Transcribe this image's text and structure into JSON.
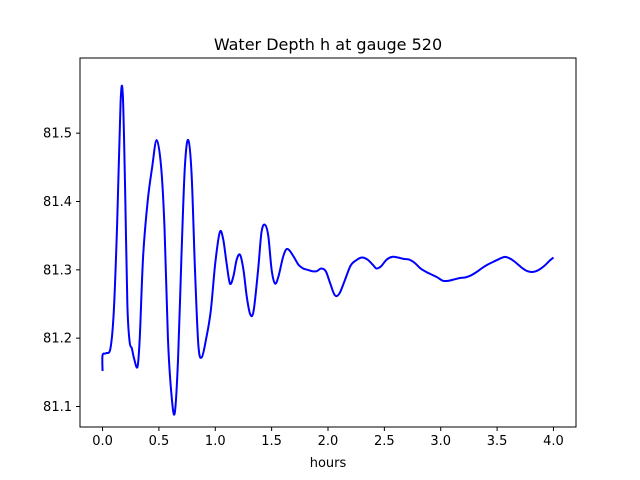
{
  "chart_data": {
    "type": "line",
    "title": "Water Depth h at gauge 520",
    "xlabel": "hours",
    "ylabel": "",
    "xlim": [
      -0.2,
      4.2
    ],
    "ylim": [
      81.07,
      81.61
    ],
    "xticks": [
      0.0,
      0.5,
      1.0,
      1.5,
      2.0,
      2.5,
      3.0,
      3.5,
      4.0
    ],
    "xtick_labels": [
      "0.0",
      "0.5",
      "1.0",
      "1.5",
      "2.0",
      "2.5",
      "3.0",
      "3.5",
      "4.0"
    ],
    "yticks": [
      81.1,
      81.2,
      81.3,
      81.4,
      81.5
    ],
    "ytick_labels": [
      "81.1",
      "81.2",
      "81.3",
      "81.4",
      "81.5"
    ],
    "grid": false,
    "legend": "none",
    "series": [
      {
        "color": "#0000ff",
        "x": [
          0.0,
          0.0,
          0.03,
          0.07,
          0.1,
          0.13,
          0.16,
          0.18,
          0.2,
          0.22,
          0.24,
          0.26,
          0.28,
          0.31,
          0.33,
          0.36,
          0.4,
          0.44,
          0.48,
          0.52,
          0.55,
          0.58,
          0.61,
          0.64,
          0.67,
          0.7,
          0.73,
          0.76,
          0.79,
          0.82,
          0.85,
          0.88,
          0.92,
          0.96,
          1.0,
          1.04,
          1.07,
          1.1,
          1.13,
          1.16,
          1.19,
          1.22,
          1.25,
          1.28,
          1.31,
          1.34,
          1.38,
          1.41,
          1.44,
          1.47,
          1.5,
          1.53,
          1.56,
          1.6,
          1.63,
          1.66,
          1.7,
          1.74,
          1.78,
          1.82,
          1.86,
          1.9,
          1.94,
          1.98,
          2.02,
          2.06,
          2.1,
          2.15,
          2.2,
          2.25,
          2.3,
          2.35,
          2.4,
          2.43,
          2.47,
          2.52,
          2.57,
          2.62,
          2.67,
          2.72,
          2.77,
          2.82,
          2.87,
          2.92,
          2.97,
          3.02,
          3.07,
          3.12,
          3.17,
          3.22,
          3.27,
          3.32,
          3.37,
          3.42,
          3.47,
          3.52,
          3.57,
          3.62,
          3.67,
          3.72,
          3.77,
          3.82,
          3.87,
          3.92,
          3.97,
          4.0
        ],
        "y": [
          81.152,
          81.175,
          81.178,
          81.185,
          81.24,
          81.37,
          81.545,
          81.555,
          81.42,
          81.25,
          81.195,
          81.185,
          81.17,
          81.158,
          81.2,
          81.32,
          81.4,
          81.45,
          81.49,
          81.45,
          81.36,
          81.2,
          81.12,
          81.09,
          81.17,
          81.32,
          81.45,
          81.49,
          81.44,
          81.3,
          81.19,
          81.172,
          81.2,
          81.24,
          81.31,
          81.355,
          81.345,
          81.31,
          81.28,
          81.29,
          81.315,
          81.322,
          81.3,
          81.26,
          81.235,
          81.24,
          81.3,
          81.355,
          81.366,
          81.35,
          81.3,
          81.28,
          81.29,
          81.318,
          81.33,
          81.328,
          81.318,
          81.307,
          81.302,
          81.3,
          81.298,
          81.298,
          81.302,
          81.298,
          81.28,
          81.263,
          81.265,
          81.285,
          81.306,
          81.314,
          81.318,
          81.315,
          81.307,
          81.302,
          81.305,
          81.315,
          81.319,
          81.318,
          81.316,
          81.315,
          81.31,
          81.302,
          81.297,
          81.293,
          81.289,
          81.284,
          81.284,
          81.286,
          81.288,
          81.289,
          81.292,
          81.297,
          81.303,
          81.308,
          81.312,
          81.316,
          81.319,
          81.316,
          81.31,
          81.303,
          81.298,
          81.297,
          81.3,
          81.306,
          81.314,
          81.318
        ]
      }
    ]
  }
}
